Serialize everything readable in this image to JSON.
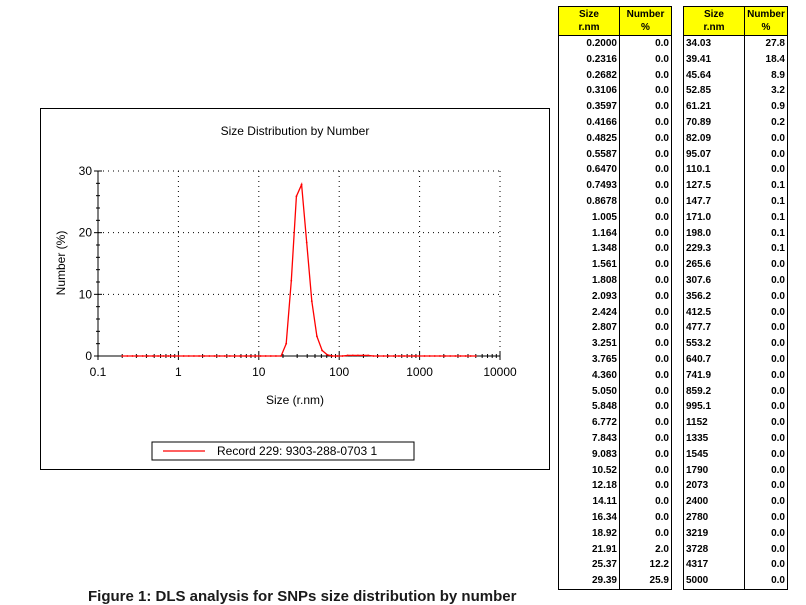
{
  "chart_data": {
    "type": "line",
    "title": "Size Distribution by Number",
    "xlabel": "Size (r.nm)",
    "ylabel": "Number (%)",
    "x_scale": "log",
    "xlim": [
      0.1,
      10000
    ],
    "ylim": [
      0,
      30
    ],
    "x_ticks": [
      "0.1",
      "1",
      "10",
      "100",
      "1000",
      "10000"
    ],
    "y_ticks": [
      "0",
      "10",
      "20",
      "30"
    ],
    "grid": true,
    "legend_position": "bottom",
    "series": [
      {
        "name": "Record 229: 9303-288-0703 1",
        "color": "#ff0000",
        "x": [
          0.2,
          0.2316,
          0.2682,
          0.3106,
          0.3597,
          0.4166,
          0.4825,
          0.5587,
          0.647,
          0.7493,
          0.8678,
          1.005,
          1.164,
          1.348,
          1.561,
          1.808,
          2.093,
          2.424,
          2.807,
          3.251,
          3.765,
          4.36,
          5.05,
          5.848,
          6.772,
          7.843,
          9.083,
          10.52,
          12.18,
          14.11,
          16.34,
          18.92,
          21.91,
          25.37,
          29.39,
          34.03,
          39.41,
          45.64,
          52.85,
          61.21,
          70.89,
          82.09,
          95.07,
          110.1,
          127.5,
          147.7,
          171.0,
          198.0,
          229.3,
          265.6,
          307.6,
          356.2,
          412.5,
          477.7,
          553.2,
          640.7,
          741.9,
          859.2,
          995.1,
          1152,
          1335,
          1545,
          1790,
          2073,
          2400,
          2780,
          3219,
          3728,
          4317,
          5000
        ],
        "y": [
          0,
          0,
          0,
          0,
          0,
          0,
          0,
          0,
          0,
          0,
          0,
          0,
          0,
          0,
          0,
          0,
          0,
          0,
          0,
          0,
          0,
          0,
          0,
          0,
          0,
          0,
          0,
          0,
          0,
          0,
          0,
          0,
          2.0,
          12.2,
          25.9,
          27.8,
          18.4,
          8.9,
          3.2,
          0.9,
          0.2,
          0,
          0,
          0,
          0.1,
          0.1,
          0.1,
          0.1,
          0.1,
          0,
          0,
          0,
          0,
          0,
          0,
          0,
          0,
          0,
          0,
          0,
          0,
          0,
          0,
          0,
          0,
          0,
          0,
          0,
          0,
          0
        ]
      }
    ]
  },
  "table": {
    "headers": {
      "size_line1": "Size",
      "size_line2": "r.nm",
      "num_line1": "Number",
      "num_line2": "%"
    },
    "left_rows": [
      [
        "0.2000",
        "0.0"
      ],
      [
        "0.2316",
        "0.0"
      ],
      [
        "0.2682",
        "0.0"
      ],
      [
        "0.3106",
        "0.0"
      ],
      [
        "0.3597",
        "0.0"
      ],
      [
        "0.4166",
        "0.0"
      ],
      [
        "0.4825",
        "0.0"
      ],
      [
        "0.5587",
        "0.0"
      ],
      [
        "0.6470",
        "0.0"
      ],
      [
        "0.7493",
        "0.0"
      ],
      [
        "0.8678",
        "0.0"
      ],
      [
        "1.005",
        "0.0"
      ],
      [
        "1.164",
        "0.0"
      ],
      [
        "1.348",
        "0.0"
      ],
      [
        "1.561",
        "0.0"
      ],
      [
        "1.808",
        "0.0"
      ],
      [
        "2.093",
        "0.0"
      ],
      [
        "2.424",
        "0.0"
      ],
      [
        "2.807",
        "0.0"
      ],
      [
        "3.251",
        "0.0"
      ],
      [
        "3.765",
        "0.0"
      ],
      [
        "4.360",
        "0.0"
      ],
      [
        "5.050",
        "0.0"
      ],
      [
        "5.848",
        "0.0"
      ],
      [
        "6.772",
        "0.0"
      ],
      [
        "7.843",
        "0.0"
      ],
      [
        "9.083",
        "0.0"
      ],
      [
        "10.52",
        "0.0"
      ],
      [
        "12.18",
        "0.0"
      ],
      [
        "14.11",
        "0.0"
      ],
      [
        "16.34",
        "0.0"
      ],
      [
        "18.92",
        "0.0"
      ],
      [
        "21.91",
        "2.0"
      ],
      [
        "25.37",
        "12.2"
      ],
      [
        "29.39",
        "25.9"
      ]
    ],
    "right_rows": [
      [
        "34.03",
        "27.8"
      ],
      [
        "39.41",
        "18.4"
      ],
      [
        "45.64",
        "8.9"
      ],
      [
        "52.85",
        "3.2"
      ],
      [
        "61.21",
        "0.9"
      ],
      [
        "70.89",
        "0.2"
      ],
      [
        "82.09",
        "0.0"
      ],
      [
        "95.07",
        "0.0"
      ],
      [
        "110.1",
        "0.0"
      ],
      [
        "127.5",
        "0.1"
      ],
      [
        "147.7",
        "0.1"
      ],
      [
        "171.0",
        "0.1"
      ],
      [
        "198.0",
        "0.1"
      ],
      [
        "229.3",
        "0.1"
      ],
      [
        "265.6",
        "0.0"
      ],
      [
        "307.6",
        "0.0"
      ],
      [
        "356.2",
        "0.0"
      ],
      [
        "412.5",
        "0.0"
      ],
      [
        "477.7",
        "0.0"
      ],
      [
        "553.2",
        "0.0"
      ],
      [
        "640.7",
        "0.0"
      ],
      [
        "741.9",
        "0.0"
      ],
      [
        "859.2",
        "0.0"
      ],
      [
        "995.1",
        "0.0"
      ],
      [
        "1152",
        "0.0"
      ],
      [
        "1335",
        "0.0"
      ],
      [
        "1545",
        "0.0"
      ],
      [
        "1790",
        "0.0"
      ],
      [
        "2073",
        "0.0"
      ],
      [
        "2400",
        "0.0"
      ],
      [
        "2780",
        "0.0"
      ],
      [
        "3219",
        "0.0"
      ],
      [
        "3728",
        "0.0"
      ],
      [
        "4317",
        "0.0"
      ],
      [
        "5000",
        "0.0"
      ]
    ]
  },
  "caption": "Figure 1: DLS analysis for SNPs size distribution by number"
}
